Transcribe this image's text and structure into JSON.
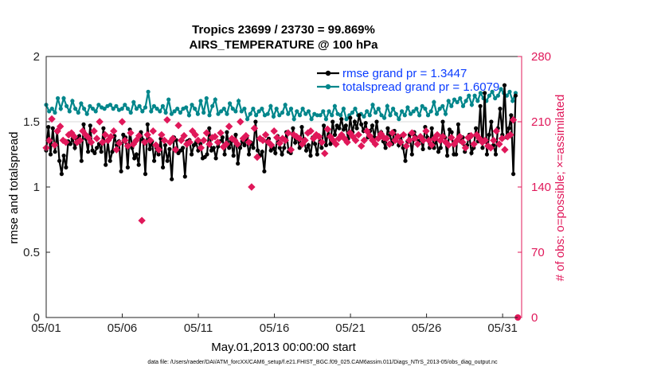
{
  "chart_data": {
    "type": "line",
    "title_line1": "Tropics 23699 / 23730 = 99.869%",
    "title_line2": "AIRS_TEMPERATURE @ 100 hPa",
    "xlabel": "May.01,2013 00:00:00 start",
    "ylabel_left": "rmse and totalspread",
    "ylabel_right": "# of obs: o=possible; ×=assimilated",
    "footnote": "data file: /Users/raeder/DAI/ATM_forcXX/CAM6_setup/f.e21.FHIST_BGC.f09_025.CAM6assim.011/Diags_NTrS_2013-05/obs_diag_output.nc",
    "x_ticks": [
      "05/01",
      "05/06",
      "05/11",
      "05/16",
      "05/21",
      "05/26",
      "05/31"
    ],
    "x_tick_days": [
      0,
      5,
      10,
      15,
      20,
      25,
      30
    ],
    "xlim": [
      0,
      31.25
    ],
    "ylim_left": [
      0,
      2
    ],
    "yticks_left": [
      "0",
      "0.5",
      "1",
      "1.5",
      "2"
    ],
    "ylim_right": [
      0,
      280
    ],
    "yticks_right": [
      "0",
      "70",
      "140",
      "210",
      "280"
    ],
    "grid_y_right": [
      210
    ],
    "legend_position": "top-right",
    "series": [
      {
        "name": "rmse grand pr = 1.3447",
        "axis": "left",
        "color": "#000000",
        "marker": "circle",
        "values": [
          1.28,
          1.46,
          1.25,
          1.45,
          1.27,
          1.42,
          1.2,
          1.1,
          1.24,
          1.15,
          1.35,
          1.33,
          1.37,
          1.3,
          1.36,
          1.39,
          1.2,
          1.48,
          1.37,
          1.27,
          1.47,
          1.28,
          1.26,
          1.3,
          1.33,
          1.27,
          1.45,
          1.17,
          1.35,
          1.2,
          1.27,
          1.39,
          1.32,
          1.35,
          1.12,
          1.4,
          1.38,
          1.15,
          1.44,
          1.3,
          1.22,
          1.25,
          1.17,
          1.42,
          1.36,
          1.1,
          1.48,
          1.29,
          1.35,
          1.2,
          1.3,
          1.25,
          1.37,
          1.15,
          1.32,
          1.2,
          1.29,
          1.06,
          1.38,
          1.36,
          1.26,
          1.28,
          1.3,
          1.08,
          1.35,
          1.36,
          1.25,
          1.32,
          1.34,
          1.28,
          1.33,
          1.22,
          1.23,
          1.25,
          1.45,
          1.28,
          1.3,
          1.22,
          1.31,
          1.35,
          1.38,
          1.25,
          1.42,
          1.3,
          1.35,
          1.24,
          1.4,
          1.18,
          1.3,
          1.35,
          1.32,
          1.38,
          1.25,
          1.34,
          1.3,
          1.5,
          1.28,
          1.24,
          1.27,
          1.12,
          1.35,
          1.37,
          1.28,
          1.3,
          1.26,
          1.39,
          1.3,
          1.25,
          1.3,
          1.42,
          1.27,
          1.26,
          1.45,
          1.34,
          1.38,
          1.3,
          1.46,
          1.36,
          1.28,
          1.32,
          1.24,
          1.38,
          1.33,
          1.25,
          1.38,
          1.3,
          1.47,
          1.32,
          1.44,
          1.33,
          1.5,
          1.4,
          1.47,
          1.45,
          1.52,
          1.44,
          1.47,
          1.37,
          1.53,
          1.42,
          1.5,
          1.45,
          1.55,
          1.48,
          1.43,
          1.49,
          1.38,
          1.43,
          1.47,
          1.38,
          1.5,
          1.37,
          1.42,
          1.35,
          1.3,
          1.45,
          1.4,
          1.33,
          1.43,
          1.38,
          1.32,
          1.39,
          1.3,
          1.2,
          1.35,
          1.4,
          1.25,
          1.42,
          1.38,
          1.35,
          1.38,
          1.29,
          1.46,
          1.38,
          1.3,
          1.45,
          1.3,
          1.36,
          1.27,
          1.3,
          1.5,
          1.38,
          1.24,
          1.44,
          1.42,
          1.25,
          1.25,
          1.48,
          1.35,
          1.38,
          1.27,
          1.32,
          1.4,
          1.26,
          1.3,
          1.45,
          1.35,
          1.62,
          1.3,
          1.72,
          1.25,
          1.4,
          1.5,
          1.32,
          1.25,
          1.45,
          1.6,
          1.4,
          1.78,
          1.38,
          1.45,
          1.55,
          1.1,
          1.7
        ],
        "markers": [
          {
            "day": 0.0,
            "v": 1.28
          },
          {
            "day": 0.15,
            "v": 1.47
          },
          {
            "day": 0.3,
            "v": 1.26
          },
          {
            "day": 0.45,
            "v": 1.45
          },
          {
            "day": 0.6,
            "v": 1.28
          },
          {
            "day": 0.85,
            "v": 1.42
          },
          {
            "day": 1.0,
            "v": 1.2
          },
          {
            "day": 1.2,
            "v": 1.1
          },
          {
            "day": 1.4,
            "v": 1.24
          },
          {
            "day": 1.6,
            "v": 1.15
          },
          {
            "day": 1.75,
            "v": 1.36
          },
          {
            "day": 1.95,
            "v": 1.33
          },
          {
            "day": 2.2,
            "v": 1.37
          },
          {
            "day": 2.35,
            "v": 1.3
          },
          {
            "day": 2.55,
            "v": 1.36
          },
          {
            "day": 2.75,
            "v": 1.38
          },
          {
            "day": 2.95,
            "v": 1.2
          },
          {
            "day": 3.1,
            "v": 1.48
          },
          {
            "day": 3.3,
            "v": 1.37
          },
          {
            "day": 3.55,
            "v": 1.27
          }
        ]
      },
      {
        "name": "totalspread grand pr = 1.6079",
        "axis": "left",
        "color": "#00868b",
        "marker": "circle",
        "values": [
          1.63,
          1.58,
          1.6,
          1.57,
          1.68,
          1.6,
          1.68,
          1.62,
          1.58,
          1.66,
          1.6,
          1.57,
          1.64,
          1.6,
          1.56,
          1.62,
          1.6,
          1.58,
          1.63,
          1.61,
          1.6,
          1.62,
          1.63,
          1.6,
          1.62,
          1.59,
          1.6,
          1.63,
          1.6,
          1.57,
          1.65,
          1.6,
          1.62,
          1.58,
          1.61,
          1.73,
          1.58,
          1.62,
          1.6,
          1.58,
          1.62,
          1.57,
          1.67,
          1.56,
          1.58,
          1.6,
          1.57,
          1.6,
          1.61,
          1.55,
          1.63,
          1.6,
          1.56,
          1.66,
          1.57,
          1.68,
          1.55,
          1.62,
          1.67,
          1.56,
          1.58,
          1.6,
          1.56,
          1.64,
          1.6,
          1.58,
          1.66,
          1.58,
          1.6,
          1.52,
          1.56,
          1.6,
          1.55,
          1.58,
          1.6,
          1.55,
          1.56,
          1.62,
          1.54,
          1.6,
          1.55,
          1.57,
          1.63,
          1.56,
          1.6,
          1.52,
          1.58,
          1.55,
          1.6,
          1.56,
          1.58,
          1.52,
          1.56,
          1.55,
          1.55,
          1.58,
          1.52,
          1.58,
          1.55,
          1.62,
          1.56,
          1.55,
          1.6,
          1.52,
          1.55,
          1.57,
          1.6,
          1.55,
          1.56,
          1.54,
          1.58,
          1.55,
          1.63,
          1.57,
          1.6,
          1.55,
          1.53,
          1.62,
          1.55,
          1.6,
          1.56,
          1.52,
          1.58,
          1.55,
          1.61,
          1.56,
          1.58,
          1.6,
          1.55,
          1.62,
          1.6,
          1.55,
          1.58,
          1.65,
          1.56,
          1.6,
          1.62,
          1.56,
          1.66,
          1.62,
          1.67,
          1.65,
          1.68,
          1.62,
          1.66,
          1.7,
          1.63,
          1.7,
          1.66,
          1.72,
          1.68,
          1.66,
          1.7,
          1.73,
          1.68,
          1.7,
          1.75,
          1.72,
          1.7,
          1.73,
          1.66,
          1.72
        ],
        "markers": [
          {
            "day": 0.0,
            "v": 1.63
          },
          {
            "day": 0.15,
            "v": 1.58
          },
          {
            "day": 0.3,
            "v": 1.6
          },
          {
            "day": 0.45,
            "v": 1.57
          },
          {
            "day": 0.6,
            "v": 1.68
          },
          {
            "day": 0.8,
            "v": 1.6
          },
          {
            "day": 1.0,
            "v": 1.68
          },
          {
            "day": 1.2,
            "v": 1.62
          },
          {
            "day": 1.4,
            "v": 1.58
          },
          {
            "day": 1.6,
            "v": 1.66
          }
        ]
      },
      {
        "name": "# obs possible",
        "axis": "right",
        "color": "#e0185a",
        "marker": "circle",
        "values": []
      },
      {
        "name": "# obs assimilated",
        "axis": "right",
        "color": "#e0185a",
        "marker": "x",
        "values": [
          182,
          190,
          213,
          185,
          200,
          205,
          190,
          188,
          196,
          198,
          194,
          188,
          190,
          200,
          196,
          193,
          188,
          200,
          192,
          210,
          188,
          196,
          190,
          194,
          200,
          180,
          187,
          210,
          190,
          184,
          198,
          186,
          190,
          195,
          104,
          188,
          196,
          190,
          200,
          185,
          180,
          196,
          190,
          212,
          188,
          192,
          180,
          206,
          190,
          195,
          186,
          188,
          200,
          196,
          190,
          182,
          190,
          198,
          186,
          193,
          194,
          188,
          198,
          183,
          186,
          205,
          192,
          190,
          186,
          210,
          192,
          195,
          188,
          140,
          203,
          172,
          192,
          190,
          196,
          188,
          185,
          200,
          193,
          187,
          192,
          190,
          198,
          180,
          196,
          194,
          192,
          186,
          190,
          198,
          200,
          192,
          196,
          194,
          188,
          176,
          202,
          194,
          190,
          186,
          192,
          196,
          192,
          188,
          198,
          194,
          190,
          196,
          184,
          190,
          200,
          195,
          190,
          186,
          192,
          197,
          193,
          192,
          186,
          198,
          190,
          194,
          188,
          196,
          184,
          190,
          198,
          192,
          186,
          194,
          190,
          200,
          190,
          185,
          192,
          196,
          190,
          194,
          188,
          185,
          193,
          186,
          190,
          194,
          188,
          182,
          193,
          195,
          186,
          196,
          192,
          188,
          190,
          184,
          182,
          190,
          200,
          186,
          192,
          180,
          194,
          196,
          212
        ]
      }
    ]
  }
}
